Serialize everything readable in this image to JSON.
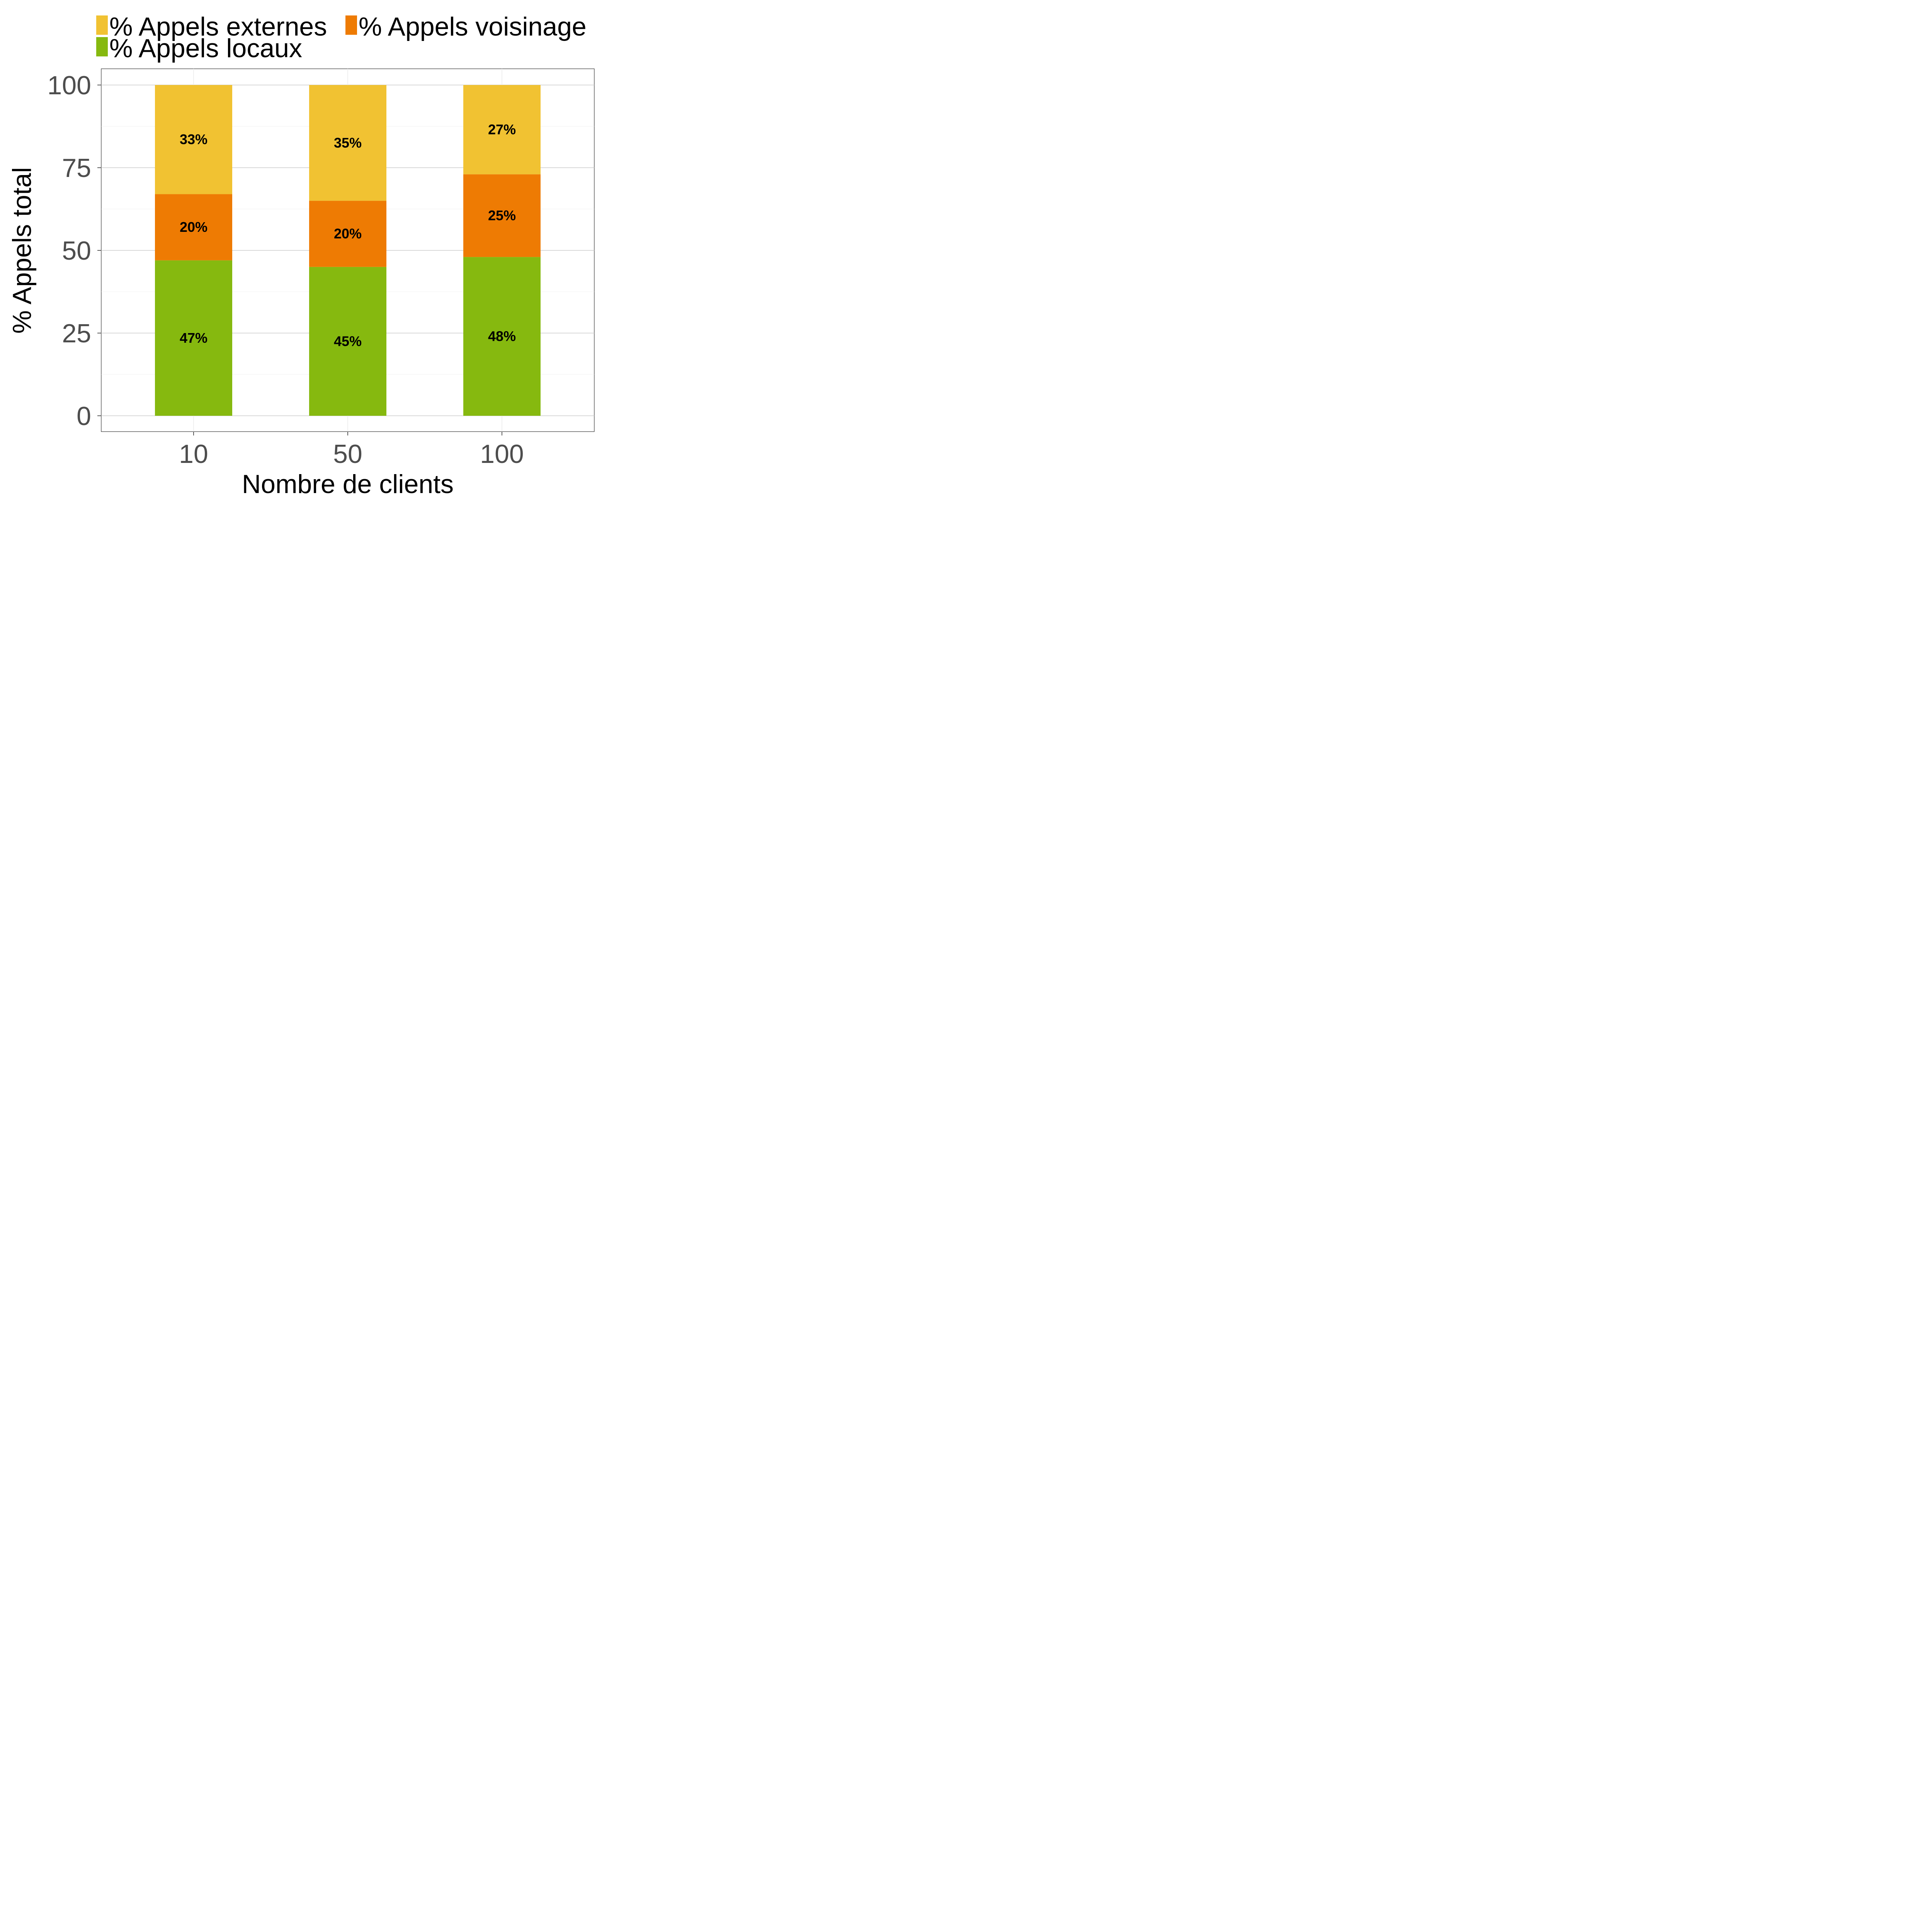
{
  "chart_data": {
    "type": "bar",
    "stacked": true,
    "title": "",
    "xlabel": "Nombre de clients",
    "ylabel": "% Appels total",
    "categories": [
      "10",
      "50",
      "100"
    ],
    "ylim": [
      0,
      100
    ],
    "yticks": [
      "0",
      "25",
      "50",
      "75",
      "100"
    ],
    "grid": true,
    "legend_position": "top-left",
    "legend": [
      "% Appels externes",
      "% Appels voisinage",
      "% Appels locaux"
    ],
    "series": [
      {
        "name": "% Appels locaux",
        "color": "#86b90f",
        "values": [
          47,
          45,
          48
        ],
        "labels": [
          "47%",
          "45%",
          "48%"
        ]
      },
      {
        "name": "% Appels voisinage",
        "color": "#ee7b03",
        "values": [
          20,
          20,
          25
        ],
        "labels": [
          "20%",
          "20%",
          "25%"
        ]
      },
      {
        "name": "% Appels externes",
        "color": "#f1c232",
        "values": [
          33,
          35,
          27
        ],
        "labels": [
          "33%",
          "35%",
          "27%"
        ]
      }
    ]
  }
}
